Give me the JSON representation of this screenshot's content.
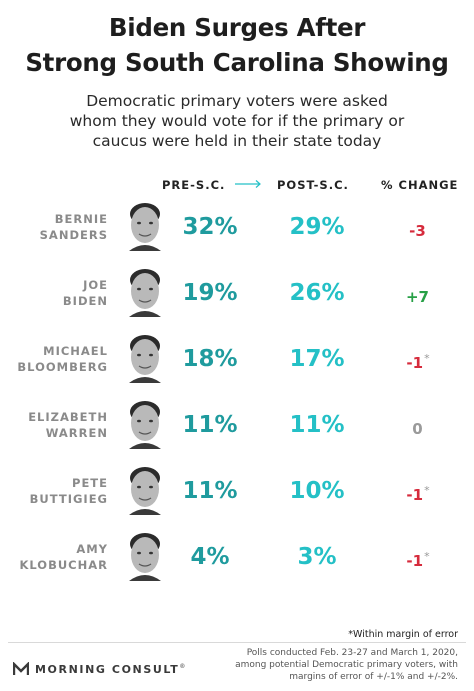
{
  "title_line1": "Biden Surges After",
  "title_line2": "Strong South Carolina Showing",
  "subtitle_line1": "Democratic primary voters were asked",
  "subtitle_line2": "whom they would vote for if the primary or",
  "subtitle_line3": "caucus were held in their state today",
  "headers": {
    "pre": "PRE-S.C.",
    "post": "POST-S.C.",
    "change": "% CHANGE"
  },
  "rows": [
    {
      "first": "BERNIE",
      "last": "SANDERS",
      "pre": "32%",
      "post": "29%",
      "change": "-3",
      "star": ""
    },
    {
      "first": "JOE",
      "last": "BIDEN",
      "pre": "19%",
      "post": "26%",
      "change": "+7",
      "star": ""
    },
    {
      "first": "MICHAEL",
      "last": "BLOOMBERG",
      "pre": "18%",
      "post": "17%",
      "change": "-1",
      "star": "*"
    },
    {
      "first": "ELIZABETH",
      "last": "WARREN",
      "pre": "11%",
      "post": "11%",
      "change": "0",
      "star": ""
    },
    {
      "first": "PETE",
      "last": "BUTTIGIEG",
      "pre": "11%",
      "post": "10%",
      "change": "-1",
      "star": "*"
    },
    {
      "first": "AMY",
      "last": "KLOBUCHAR",
      "pre": "4%",
      "post": "3%",
      "change": "-1",
      "star": "*"
    }
  ],
  "change_colors": {
    "negative": "#d62b3c",
    "positive": "#27a046",
    "neutral": "#9a9a9a"
  },
  "note": "*Within margin of error",
  "footer_line1": "Polls conducted Feb. 23-27 and March 1, 2020,",
  "footer_line2": "among potential Democratic primary voters, with",
  "footer_line3": "margins of error of +/-1% and +/-2%.",
  "logo_text": "MORNING CONSULT",
  "logo_tm": "®"
}
